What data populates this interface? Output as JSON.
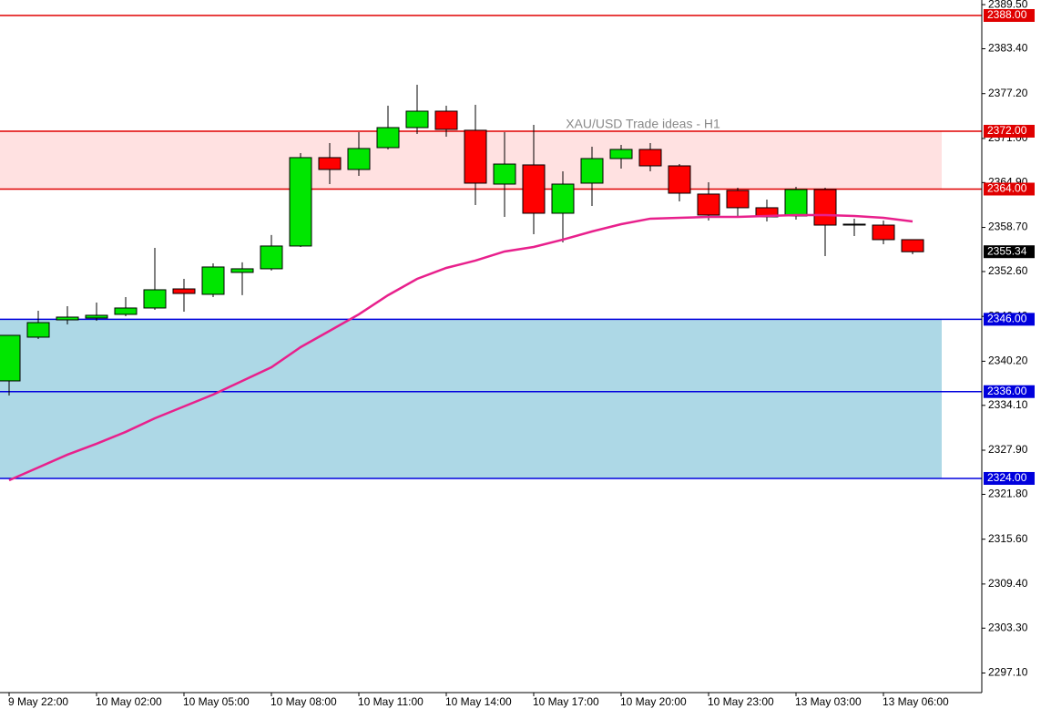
{
  "chart_data": {
    "type": "candlestick",
    "title": "XAU/USD Trade ideas - H1",
    "categories": [
      "9 May 22:00",
      null,
      null,
      "10 May 02:00",
      null,
      null,
      "10 May 05:00",
      null,
      null,
      "10 May 08:00",
      null,
      null,
      "10 May 11:00",
      null,
      null,
      "10 May 14:00",
      null,
      null,
      "10 May 17:00",
      null,
      null,
      "10 May 20:00",
      null,
      null,
      "10 May 23:00",
      null,
      null,
      "13 May 03:00",
      null,
      null,
      "13 May 06:00",
      null
    ],
    "open": [
      2337.48,
      2343.53,
      2345.92,
      2346.17,
      2346.68,
      2347.56,
      2350.2,
      2349.45,
      2352.48,
      2352.98,
      2356.13,
      2368.35,
      2366.71,
      2369.73,
      2372.5,
      2374.77,
      2372.13,
      2364.69,
      2367.34,
      2360.66,
      2364.82,
      2368.22,
      2369.48,
      2367.21,
      2363.31,
      2363.81,
      2361.42,
      2360.28,
      2363.94,
      2359.15,
      2359.02,
      2357.01
    ],
    "high": [
      2343.78,
      2347.18,
      2347.81,
      2348.31,
      2349.07,
      2355.87,
      2351.59,
      2353.73,
      2353.87,
      2357.65,
      2368.98,
      2370.36,
      2371.87,
      2375.53,
      2378.42,
      2375.53,
      2375.65,
      2371.87,
      2372.88,
      2366.46,
      2369.86,
      2370.11,
      2370.36,
      2367.46,
      2364.94,
      2364.19,
      2362.55,
      2364.31,
      2364.19,
      2359.91,
      2359.65,
      2357.01
    ],
    "low": [
      2335.46,
      2343.28,
      2345.29,
      2345.8,
      2346.43,
      2347.31,
      2347.06,
      2349.07,
      2349.34,
      2352.73,
      2356.0,
      2364.69,
      2365.83,
      2369.48,
      2371.62,
      2371.24,
      2361.79,
      2360.16,
      2357.76,
      2356.63,
      2361.67,
      2366.83,
      2366.46,
      2362.3,
      2359.65,
      2360.28,
      2359.53,
      2359.78,
      2354.74,
      2357.51,
      2356.38,
      2354.99
    ],
    "close": [
      2343.78,
      2345.54,
      2346.3,
      2346.55,
      2347.56,
      2350.08,
      2349.57,
      2353.23,
      2352.98,
      2356.13,
      2368.35,
      2366.71,
      2369.61,
      2372.5,
      2374.77,
      2372.25,
      2364.82,
      2367.46,
      2360.66,
      2364.69,
      2368.22,
      2369.48,
      2367.21,
      2363.43,
      2360.41,
      2361.42,
      2360.16,
      2363.94,
      2359.02,
      2359.15,
      2357.01,
      2355.34
    ],
    "up_color": "#00e600",
    "down_color": "#ff0000",
    "doji_color": "#000000",
    "moving_average": {
      "color": "#e8208c",
      "values": [
        2323.75,
        2325.51,
        2327.28,
        2328.79,
        2330.43,
        2332.31,
        2333.95,
        2335.59,
        2337.48,
        2339.37,
        2342.14,
        2344.41,
        2346.68,
        2349.32,
        2351.59,
        2353.1,
        2354.11,
        2355.37,
        2356.0,
        2357.01,
        2358.14,
        2359.15,
        2359.91,
        2360.03,
        2360.16,
        2360.16,
        2360.28,
        2360.41,
        2360.41,
        2360.28,
        2360.03,
        2359.53
      ]
    },
    "zones": [
      {
        "from": 2364,
        "to": 2372,
        "color": "#ffe1e1"
      },
      {
        "from": 2324,
        "to": 2346,
        "color": "#add8e6"
      }
    ],
    "levels": [
      {
        "value": 2388,
        "label": "2388.00",
        "color": "#e00000"
      },
      {
        "value": 2372,
        "label": "2372.00",
        "color": "#e00000"
      },
      {
        "value": 2364,
        "label": "2364.00",
        "color": "#e00000"
      },
      {
        "value": 2346,
        "label": "2346.00",
        "color": "#0000dd"
      },
      {
        "value": 2336,
        "label": "2336.00",
        "color": "#0000dd"
      },
      {
        "value": 2324,
        "label": "2324.00",
        "color": "#0000dd"
      }
    ],
    "last_price": {
      "value": 2355.34,
      "label": "2355.34"
    },
    "ylim": [
      2294.39,
      2390.14
    ],
    "yticks": [
      {
        "value": 2389.5,
        "label": "2389.50"
      },
      {
        "value": 2383.4,
        "label": "2383.40"
      },
      {
        "value": 2377.2,
        "label": "2377.20"
      },
      {
        "value": 2371.0,
        "label": "2371.00"
      },
      {
        "value": 2364.9,
        "label": "2364.90"
      },
      {
        "value": 2358.7,
        "label": "2358.70"
      },
      {
        "value": 2352.6,
        "label": "2352.60"
      },
      {
        "value": 2346.4,
        "label": "2346.40"
      },
      {
        "value": 2340.2,
        "label": "2340.20"
      },
      {
        "value": 2334.1,
        "label": "2334.10"
      },
      {
        "value": 2327.9,
        "label": "2327.90"
      },
      {
        "value": 2321.8,
        "label": "2321.80"
      },
      {
        "value": 2315.6,
        "label": "2315.60"
      },
      {
        "value": 2309.4,
        "label": "2309.40"
      },
      {
        "value": 2303.3,
        "label": "2303.30"
      },
      {
        "value": 2297.1,
        "label": "2297.10"
      }
    ]
  }
}
